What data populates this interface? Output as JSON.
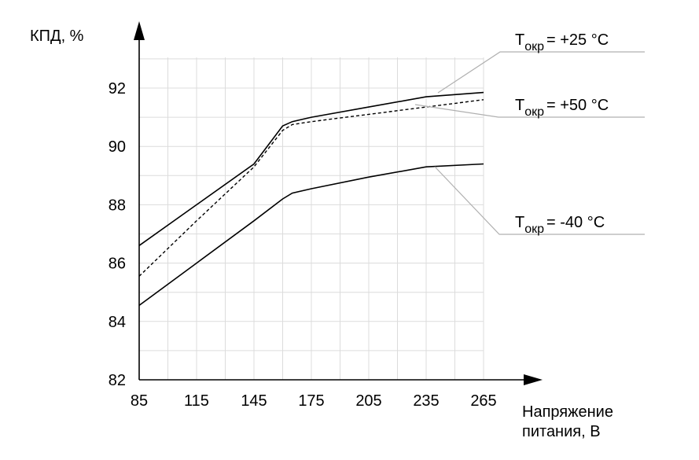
{
  "chart_data": {
    "type": "line",
    "ylabel": "КПД, %",
    "xlabel_line1": "Напряжение",
    "xlabel_line2": "питания, В",
    "xlim": [
      85,
      265
    ],
    "ylim": [
      82,
      92
    ],
    "x_ticks": [
      85,
      115,
      145,
      175,
      205,
      235,
      265
    ],
    "y_ticks": [
      82,
      84,
      86,
      88,
      90,
      92
    ],
    "grid": true,
    "series": [
      {
        "name": "T окр = +25 °C",
        "legend_main": "T",
        "legend_sub": "окр",
        "legend_value": "= +25 °C",
        "style": "solid",
        "x": [
          85,
          115,
          145,
          160,
          165,
          175,
          205,
          235,
          265
        ],
        "y": [
          86.6,
          88.0,
          89.4,
          90.7,
          90.85,
          91.0,
          91.35,
          91.7,
          91.85
        ]
      },
      {
        "name": "T окр = +50 °C",
        "legend_main": "T",
        "legend_sub": "окр",
        "legend_value": "= +50 °C",
        "style": "dashed",
        "x": [
          85,
          115,
          145,
          160,
          165,
          175,
          205,
          235,
          265
        ],
        "y": [
          85.55,
          87.45,
          89.3,
          90.55,
          90.75,
          90.85,
          91.1,
          91.35,
          91.6
        ]
      },
      {
        "name": "T окр = -40 °C",
        "legend_main": "T",
        "legend_sub": "окр",
        "legend_value": "= -40 °C",
        "style": "solid",
        "x": [
          85,
          115,
          145,
          160,
          165,
          175,
          205,
          235,
          265
        ],
        "y": [
          84.55,
          86.0,
          87.45,
          88.2,
          88.4,
          88.55,
          88.95,
          89.3,
          89.4
        ]
      }
    ]
  }
}
